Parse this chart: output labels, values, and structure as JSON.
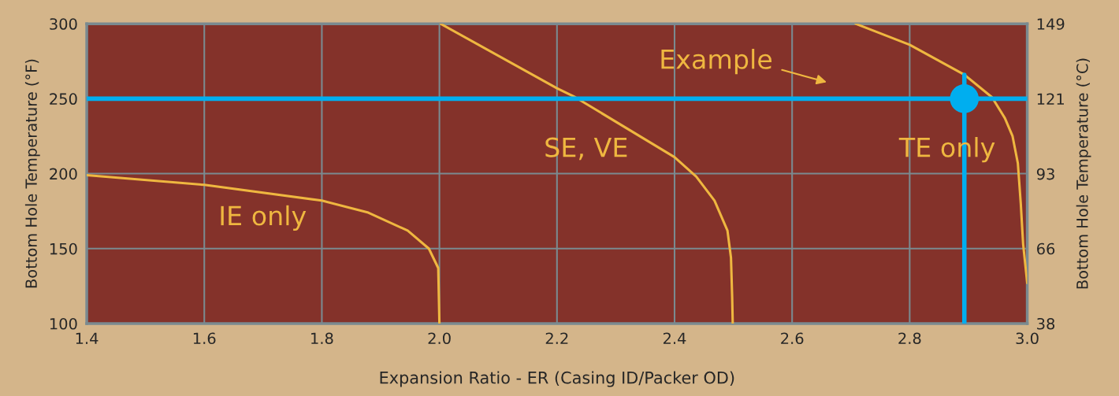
{
  "chart_data": {
    "type": "line",
    "xlabel": "Expansion Ratio - ER (Casing ID/Packer OD)",
    "ylabel": "Bottom Hole Temperature (°F)",
    "y2label": "Bottom Hole Temperature (°C)",
    "xlim": [
      1.4,
      3.0
    ],
    "xticks": [
      {
        "value": 1.4,
        "label": "1.4"
      },
      {
        "value": 1.6,
        "label": "1.6"
      },
      {
        "value": 1.8,
        "label": "1.8"
      },
      {
        "value": 2.0,
        "label": "2.0"
      },
      {
        "value": 2.2,
        "label": "2.2"
      },
      {
        "value": 2.4,
        "label": "2.4"
      },
      {
        "value": 2.6,
        "label": "2.6"
      },
      {
        "value": 2.8,
        "label": "2.8"
      },
      {
        "value": 3.0,
        "label": "3.0"
      }
    ],
    "ylim": [
      100,
      300
    ],
    "yticks": [
      100,
      150,
      200,
      250,
      300
    ],
    "y2lim": [
      37.8,
      148.9
    ],
    "y2ticks": [
      {
        "value": 37.8,
        "label": "38"
      },
      {
        "value": 65.6,
        "label": "66"
      },
      {
        "value": 93.3,
        "label": "93"
      },
      {
        "value": 121.1,
        "label": "121"
      },
      {
        "value": 148.9,
        "label": "149"
      }
    ],
    "grid": true,
    "marker": "none",
    "line_style": "solid",
    "series": [
      {
        "color": "#efb740",
        "x": [
          1.4,
          1.6,
          1.8,
          1.879,
          1.946,
          1.982,
          1.998,
          2.0
        ],
        "values": [
          199,
          192.5,
          182,
          174,
          162,
          150,
          137,
          100
        ]
      },
      {
        "color": "#efb740",
        "x": [
          2.002,
          2.2,
          2.231,
          2.4,
          2.437,
          2.468,
          2.49,
          2.496,
          2.498,
          2.499
        ],
        "values": [
          300,
          257,
          251,
          211,
          198,
          182,
          162,
          144,
          118,
          100
        ]
      },
      {
        "color": "#efb740",
        "x": [
          2.708,
          2.8,
          2.893,
          2.94,
          2.962,
          2.975,
          2.984,
          2.989,
          2.993,
          3.0
        ],
        "values": [
          300,
          286,
          266,
          251,
          237,
          225,
          207,
          180,
          153,
          127
        ]
      },
      {
        "color": "#00aeef",
        "x": [
          2.893,
          2.893
        ],
        "values": [
          100,
          266
        ]
      },
      {
        "type": "scatter",
        "marker": "circle",
        "color": "#00aeef",
        "x": [
          2.893
        ],
        "values": [
          250
        ]
      }
    ],
    "ref_lines": [
      {
        "axis": "y",
        "value": 250,
        "color": "#00aeef"
      }
    ],
    "annotations": [
      "Example",
      "IE only",
      "SE, VE",
      "TE only"
    ]
  }
}
